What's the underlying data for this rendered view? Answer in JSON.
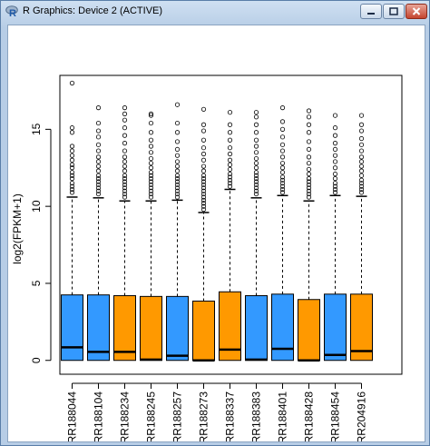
{
  "window": {
    "title": "R Graphics: Device 2 (ACTIVE)",
    "icons": {
      "app": "r-logo-icon",
      "minimize": "minimize-icon",
      "maximize": "maximize-icon",
      "close": "close-icon"
    }
  },
  "chart_data": {
    "type": "box",
    "ylabel": "log2(FPKM+1)",
    "ylim": [
      -0.9,
      18.5
    ],
    "yticks": [
      0,
      5,
      10,
      15
    ],
    "colors": {
      "blue": "#3399ff",
      "orange": "#ff9900"
    },
    "boxes": [
      {
        "label": "RR188044",
        "color": "blue",
        "q1": 0,
        "median": 0.85,
        "q3": 4.25,
        "whisker_hi": 10.6,
        "outliers": [
          10.9,
          11.1,
          11.3,
          11.5,
          11.8,
          12.0,
          12.2,
          12.5,
          12.7,
          13.0,
          13.3,
          13.6,
          13.9,
          14.8,
          15.1,
          18.0
        ]
      },
      {
        "label": "RR188104",
        "color": "blue",
        "q1": 0,
        "median": 0.55,
        "q3": 4.25,
        "whisker_hi": 10.55,
        "outliers": [
          10.8,
          11.0,
          11.2,
          11.4,
          11.6,
          11.8,
          12.0,
          12.3,
          12.6,
          12.9,
          13.2,
          13.6,
          14.0,
          14.5,
          14.9,
          15.4,
          16.4
        ]
      },
      {
        "label": "RR188234",
        "color": "orange",
        "q1": 0,
        "median": 0.55,
        "q3": 4.2,
        "whisker_hi": 10.35,
        "outliers": [
          10.6,
          10.8,
          11.0,
          11.2,
          11.4,
          11.6,
          11.8,
          12.0,
          12.3,
          12.6,
          12.9,
          13.2,
          13.6,
          14.1,
          14.6,
          15.1,
          15.6,
          16.0,
          16.4
        ]
      },
      {
        "label": "RR188245",
        "color": "orange",
        "q1": 0,
        "median": 0.05,
        "q3": 4.15,
        "whisker_hi": 10.35,
        "outliers": [
          10.6,
          10.8,
          11.0,
          11.2,
          11.4,
          11.6,
          11.8,
          12.0,
          12.2,
          12.5,
          12.8,
          13.1,
          13.5,
          13.9,
          14.3,
          14.8,
          15.4,
          15.9,
          16.0
        ]
      },
      {
        "label": "RR188257",
        "color": "blue",
        "q1": 0,
        "median": 0.3,
        "q3": 4.15,
        "whisker_hi": 10.4,
        "outliers": [
          10.6,
          10.8,
          11.0,
          11.2,
          11.4,
          11.6,
          11.8,
          12.0,
          12.3,
          12.6,
          12.9,
          13.3,
          13.7,
          14.2,
          14.8,
          15.4,
          16.6
        ]
      },
      {
        "label": "RR188273",
        "color": "orange",
        "q1": 0,
        "median": 0,
        "q3": 3.85,
        "whisker_hi": 9.6,
        "outliers": [
          9.8,
          10.0,
          10.2,
          10.4,
          10.6,
          10.8,
          11.0,
          11.2,
          11.4,
          11.6,
          11.8,
          12.0,
          12.3,
          12.6,
          13.0,
          13.4,
          13.8,
          14.3,
          14.9,
          15.3,
          16.3
        ]
      },
      {
        "label": "RR188337",
        "color": "orange",
        "q1": 0,
        "median": 0.7,
        "q3": 4.45,
        "whisker_hi": 11.1,
        "outliers": [
          11.3,
          11.5,
          11.7,
          11.9,
          12.1,
          12.4,
          12.7,
          13.0,
          13.4,
          13.8,
          14.3,
          14.8,
          15.3,
          16.1
        ]
      },
      {
        "label": "RR188383",
        "color": "blue",
        "q1": 0,
        "median": 0.05,
        "q3": 4.2,
        "whisker_hi": 10.55,
        "outliers": [
          10.8,
          11.0,
          11.2,
          11.4,
          11.6,
          11.8,
          12.0,
          12.2,
          12.5,
          12.8,
          13.1,
          13.5,
          13.9,
          14.3,
          14.8,
          15.3,
          15.8,
          16.1
        ]
      },
      {
        "label": "RR188401",
        "color": "blue",
        "q1": 0,
        "median": 0.75,
        "q3": 4.3,
        "whisker_hi": 10.7,
        "outliers": [
          10.9,
          11.1,
          11.3,
          11.5,
          11.7,
          11.9,
          12.2,
          12.5,
          12.8,
          13.2,
          13.6,
          14.0,
          14.5,
          15.0,
          15.5,
          16.4
        ]
      },
      {
        "label": "RR188428",
        "color": "orange",
        "q1": 0,
        "median": 0,
        "q3": 3.95,
        "whisker_hi": 10.35,
        "outliers": [
          10.6,
          10.8,
          11.0,
          11.2,
          11.4,
          11.6,
          11.8,
          12.1,
          12.4,
          12.8,
          13.2,
          13.7,
          14.2,
          14.8,
          15.3,
          15.8,
          16.2
        ]
      },
      {
        "label": "RR188454",
        "color": "blue",
        "q1": 0,
        "median": 0.35,
        "q3": 4.3,
        "whisker_hi": 10.7,
        "outliers": [
          10.9,
          11.1,
          11.3,
          11.5,
          11.8,
          12.1,
          12.5,
          12.9,
          13.3,
          13.7,
          14.1,
          14.6,
          15.1,
          15.9
        ]
      },
      {
        "label": "RR204916",
        "color": "orange",
        "q1": 0,
        "median": 0.6,
        "q3": 4.3,
        "whisker_hi": 10.65,
        "outliers": [
          10.9,
          11.1,
          11.3,
          11.5,
          11.7,
          12.0,
          12.3,
          12.6,
          12.9,
          13.2,
          13.6,
          14.0,
          14.4,
          14.9,
          15.3,
          15.9
        ]
      }
    ]
  }
}
